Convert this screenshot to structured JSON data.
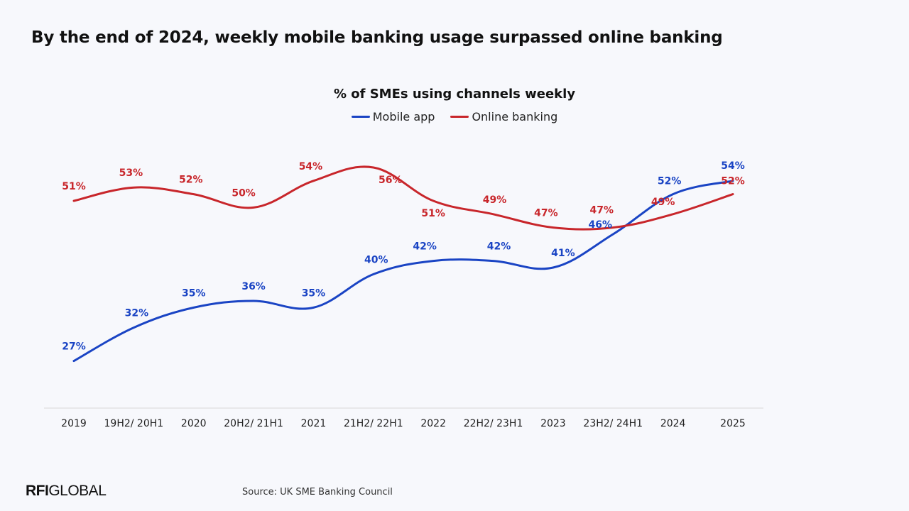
{
  "headline": "By the end of 2024, weekly mobile banking usage surpassed online banking",
  "logo": {
    "strong": "RFI",
    "rest": "GLOBAL"
  },
  "source": "Source: UK SME Banking Council",
  "colors": {
    "mobile": "#1a44c4",
    "online": "#c8262b",
    "axis": "#d9d9d9"
  },
  "chart_data": {
    "type": "line",
    "title": "% of SMEs using channels weekly",
    "xlabel": "",
    "ylabel": "",
    "categories": [
      "2019",
      "19H2/ 20H1",
      "2020",
      "20H2/ 21H1",
      "2021",
      "21H2/ 22H1",
      "2022",
      "22H2/ 23H1",
      "2023",
      "23H2/ 24H1",
      "2024",
      "2025"
    ],
    "series": [
      {
        "name": "Mobile app",
        "color": "#1a44c4",
        "values": [
          27,
          32,
          35,
          36,
          35,
          40,
          42,
          42,
          41,
          46,
          52,
          54
        ],
        "labels": [
          "27%",
          "32%",
          "35%",
          "36%",
          "35%",
          "40%",
          "42%",
          "42%",
          "41%",
          "46%",
          "52%",
          "54%"
        ]
      },
      {
        "name": "Online banking",
        "color": "#c8262b",
        "values": [
          51,
          53,
          52,
          50,
          54,
          56,
          51,
          49,
          47,
          47,
          49,
          52
        ],
        "labels": [
          "51%",
          "53%",
          "52%",
          "50%",
          "54%",
          "56%",
          "51%",
          "49%",
          "47%",
          "47%",
          "49%",
          "52%"
        ]
      }
    ],
    "legend_position": "top-center",
    "grid": false
  }
}
